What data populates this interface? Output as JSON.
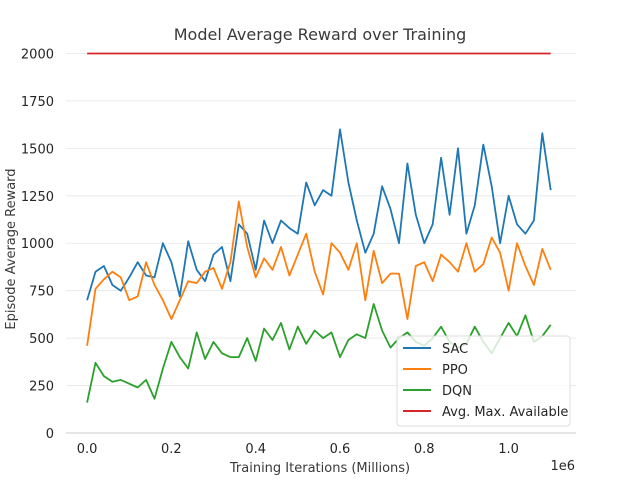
{
  "chart_data": {
    "type": "line",
    "title": "Model Average Reward over Training",
    "xlabel": "Training Iterations (Millions)",
    "ylabel": "Episode Average Reward",
    "x_offset_label": "1e6",
    "xlim": [
      -50000,
      1160000
    ],
    "ylim": [
      0,
      2150
    ],
    "xticks": [
      0,
      200000,
      400000,
      600000,
      800000,
      1000000
    ],
    "xtick_labels": [
      "0.0",
      "0.2",
      "0.4",
      "0.6",
      "0.8",
      "1.0"
    ],
    "yticks": [
      0,
      250,
      500,
      750,
      1000,
      1250,
      1500,
      1750,
      2000
    ],
    "ytick_labels": [
      "0",
      "250",
      "500",
      "750",
      "1000",
      "1250",
      "1500",
      "1750",
      "2000"
    ],
    "grid": true,
    "legend_position": "lower-right",
    "x": [
      0,
      20000,
      40000,
      60000,
      80000,
      100000,
      120000,
      140000,
      160000,
      180000,
      200000,
      220000,
      240000,
      260000,
      280000,
      300000,
      320000,
      340000,
      360000,
      380000,
      400000,
      420000,
      440000,
      460000,
      480000,
      500000,
      520000,
      540000,
      560000,
      580000,
      600000,
      620000,
      640000,
      660000,
      680000,
      700000,
      720000,
      740000,
      760000,
      780000,
      800000,
      820000,
      840000,
      860000,
      880000,
      900000,
      920000,
      940000,
      960000,
      980000,
      1000000,
      1020000,
      1040000,
      1060000,
      1080000,
      1100000
    ],
    "series": [
      {
        "name": "SAC",
        "color": "#1f77b4",
        "values": [
          700,
          850,
          880,
          780,
          750,
          820,
          900,
          830,
          820,
          1000,
          900,
          720,
          1010,
          860,
          800,
          940,
          980,
          800,
          1100,
          1050,
          860,
          1120,
          1000,
          1120,
          1080,
          1050,
          1320,
          1200,
          1280,
          1250,
          1600,
          1320,
          1120,
          950,
          1050,
          1300,
          1180,
          1000,
          1420,
          1150,
          1000,
          1100,
          1450,
          1150,
          1500,
          1050,
          1200,
          1520,
          1300,
          1000,
          1250,
          1100,
          1050,
          1120,
          1580,
          1280
        ]
      },
      {
        "name": "PPO",
        "color": "#ff7f0e",
        "values": [
          460,
          760,
          810,
          850,
          820,
          700,
          720,
          900,
          780,
          700,
          600,
          700,
          800,
          790,
          850,
          870,
          760,
          900,
          1220,
          980,
          820,
          920,
          860,
          980,
          830,
          940,
          1050,
          850,
          730,
          1000,
          950,
          860,
          1000,
          700,
          960,
          790,
          840,
          840,
          600,
          880,
          900,
          800,
          940,
          900,
          850,
          1000,
          850,
          890,
          1030,
          950,
          750,
          1000,
          880,
          780,
          970,
          860
        ]
      },
      {
        "name": "DQN",
        "color": "#2ca02c",
        "values": [
          160,
          370,
          300,
          270,
          280,
          260,
          240,
          280,
          180,
          340,
          480,
          400,
          340,
          530,
          390,
          480,
          420,
          400,
          400,
          500,
          380,
          550,
          490,
          580,
          440,
          560,
          470,
          540,
          500,
          530,
          400,
          490,
          520,
          500,
          680,
          540,
          450,
          500,
          530,
          480,
          460,
          500,
          560,
          480,
          450,
          470,
          560,
          480,
          420,
          500,
          580,
          510,
          620,
          480,
          510,
          570
        ]
      },
      {
        "name": "Avg. Max. Available",
        "color": "#d62728",
        "values": [
          2000,
          2000,
          2000,
          2000,
          2000,
          2000,
          2000,
          2000,
          2000,
          2000,
          2000,
          2000,
          2000,
          2000,
          2000,
          2000,
          2000,
          2000,
          2000,
          2000,
          2000,
          2000,
          2000,
          2000,
          2000,
          2000,
          2000,
          2000,
          2000,
          2000,
          2000,
          2000,
          2000,
          2000,
          2000,
          2000,
          2000,
          2000,
          2000,
          2000,
          2000,
          2000,
          2000,
          2000,
          2000,
          2000,
          2000,
          2000,
          2000,
          2000,
          2000,
          2000,
          2000,
          2000,
          2000,
          2000
        ]
      }
    ]
  }
}
